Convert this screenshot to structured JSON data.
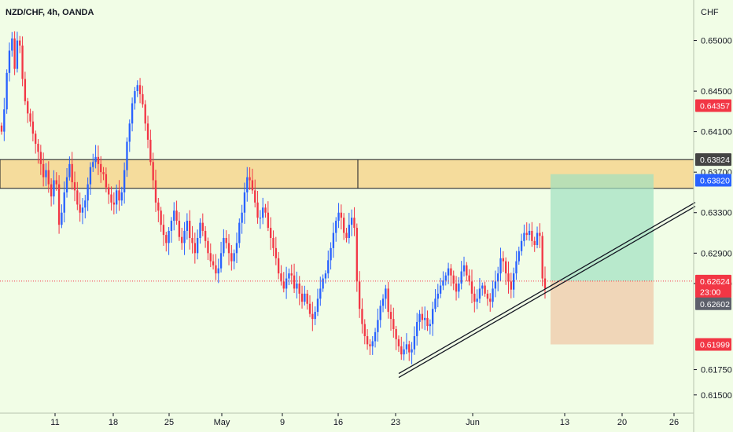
{
  "chart_data": {
    "type": "candlestick",
    "title": "NZD/CHF, 4h, OANDA",
    "currency": "CHF",
    "ylim": [
      0.6132,
      0.654
    ],
    "x_ticks": [
      "11",
      "18",
      "25",
      "May",
      "9",
      "16",
      "23",
      "Jun",
      "13",
      "20",
      "26"
    ],
    "y_ticks": [
      "0.65000",
      "0.64500",
      "0.64100",
      "0.63700",
      "0.63300",
      "0.62900",
      "0.62600",
      "0.61750",
      "0.61500"
    ],
    "price_tags": [
      {
        "label": "0.64357",
        "value": 0.64357,
        "color": "#f23645"
      },
      {
        "label": "0.63824",
        "value": 0.63824,
        "color": "#444444"
      },
      {
        "label": "0.63820",
        "value": 0.6362,
        "color": "#2962ff"
      },
      {
        "label": "0.62624",
        "value": 0.62624,
        "color": "#f23645"
      },
      {
        "label": "23:00",
        "value": 0.6252,
        "color": "#f23645"
      },
      {
        "label": "0.62602",
        "value": 0.624,
        "color": "#5d606b"
      },
      {
        "label": "0.61999",
        "value": 0.61999,
        "color": "#f23645"
      }
    ],
    "resistance_zone": {
      "top": 0.63824,
      "bottom": 0.6354,
      "color": "#f6d68e"
    },
    "current_price": 0.62624,
    "long_position": {
      "entry": 0.62624,
      "target": 0.6368,
      "stop": 0.61999
    },
    "trendline": {
      "start": 0.6168,
      "end": 0.6337
    },
    "up_color": "#2962ff",
    "down_color": "#f23645",
    "close_series": [
      0.641,
      0.6432,
      0.6468,
      0.649,
      0.6502,
      0.6472,
      0.65,
      0.6495,
      0.6462,
      0.644,
      0.6428,
      0.642,
      0.6408,
      0.6398,
      0.639,
      0.6378,
      0.6365,
      0.6372,
      0.6358,
      0.6346,
      0.6362,
      0.6358,
      0.6318,
      0.633,
      0.635,
      0.6365,
      0.6378,
      0.636,
      0.6352,
      0.6338,
      0.633,
      0.6335,
      0.6342,
      0.6358,
      0.6375,
      0.638,
      0.6385,
      0.6378,
      0.637,
      0.6368,
      0.6355,
      0.6348,
      0.634,
      0.6338,
      0.6352,
      0.6342,
      0.635,
      0.6372,
      0.64,
      0.6418,
      0.6438,
      0.645,
      0.6456,
      0.6447,
      0.6437,
      0.6418,
      0.6402,
      0.638,
      0.6362,
      0.634,
      0.6332,
      0.6318,
      0.6308,
      0.63,
      0.6312,
      0.6322,
      0.6332,
      0.6322,
      0.6306,
      0.63,
      0.6312,
      0.6322,
      0.6305,
      0.63,
      0.629,
      0.6305,
      0.632,
      0.6312,
      0.6302,
      0.629,
      0.6282,
      0.6278,
      0.627,
      0.6275,
      0.629,
      0.6305,
      0.63,
      0.629,
      0.6282,
      0.629,
      0.63,
      0.632,
      0.633,
      0.635,
      0.6365,
      0.6362,
      0.6352,
      0.634,
      0.6325,
      0.6325,
      0.6335,
      0.633,
      0.6315,
      0.6305,
      0.6295,
      0.6285,
      0.627,
      0.6262,
      0.6255,
      0.6265,
      0.627,
      0.6268,
      0.6255,
      0.626,
      0.625,
      0.6242,
      0.625,
      0.624,
      0.623,
      0.6225,
      0.6232,
      0.6245,
      0.6255,
      0.6265,
      0.627,
      0.6283,
      0.6295,
      0.631,
      0.6322,
      0.633,
      0.6325,
      0.631,
      0.6305,
      0.6318,
      0.6325,
      0.6315,
      0.6262,
      0.6235,
      0.622,
      0.6208,
      0.62,
      0.6198,
      0.6203,
      0.6212,
      0.6224,
      0.6238,
      0.6245,
      0.6255,
      0.6232,
      0.6225,
      0.6215,
      0.6205,
      0.6198,
      0.619,
      0.6195,
      0.62,
      0.6192,
      0.6195,
      0.6208,
      0.6222,
      0.623,
      0.6224,
      0.6226,
      0.6218,
      0.622,
      0.6235,
      0.6245,
      0.625,
      0.6258,
      0.6263,
      0.6268,
      0.6275,
      0.6268,
      0.626,
      0.6252,
      0.626,
      0.6272,
      0.6278,
      0.6268,
      0.6262,
      0.625,
      0.6242,
      0.6245,
      0.6255,
      0.6258,
      0.625,
      0.6245,
      0.6242,
      0.6255,
      0.6262,
      0.627,
      0.6285,
      0.6282,
      0.627,
      0.6262,
      0.6254,
      0.627,
      0.6282,
      0.6292,
      0.6302,
      0.631,
      0.6308,
      0.6312,
      0.6302,
      0.6298,
      0.631,
      0.6307,
      0.6265,
      0.6255
    ]
  }
}
